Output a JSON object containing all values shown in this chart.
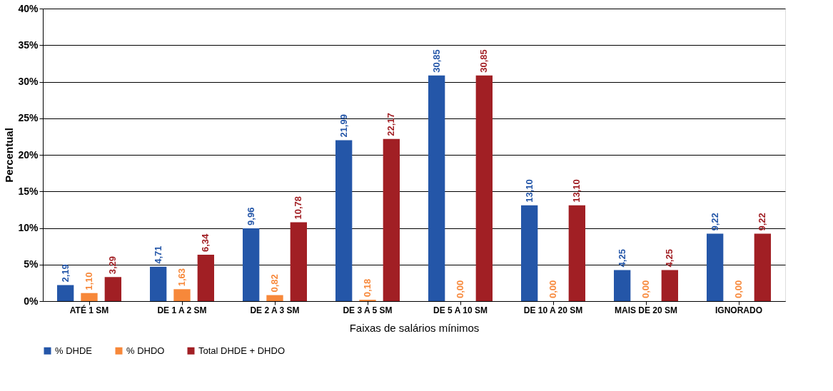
{
  "chart_data": {
    "type": "bar",
    "xlabel": "Faixas de salários mínimos",
    "ylabel": "Percentual",
    "categories": [
      "ATÉ 1 SM",
      "DE 1 A 2 SM",
      "DE 2 A 3 SM",
      "DE 3 A 5 SM",
      "DE 5 A 10 SM",
      "DE 10 A 20 SM",
      "MAIS DE 20 SM",
      "IGNORADO"
    ],
    "series": [
      {
        "name": "% DHDE",
        "color": "#2456a8",
        "values": [
          2.19,
          4.71,
          9.96,
          21.99,
          30.85,
          13.1,
          4.25,
          9.22
        ],
        "value_labels": [
          "2,19",
          "4,71",
          "9,96",
          "21,99",
          "30,85",
          "13,10",
          "4,25",
          "9,22"
        ]
      },
      {
        "name": "% DHDO",
        "color": "#f7883a",
        "values": [
          1.1,
          1.63,
          0.82,
          0.18,
          0.0,
          0.0,
          0.0,
          0.0
        ],
        "value_labels": [
          "1,10",
          "1,63",
          "0,82",
          "0,18",
          "0,00",
          "0,00",
          "0,00",
          "0,00"
        ]
      },
      {
        "name": "Total DHDE + DHDO",
        "color": "#a11f24",
        "values": [
          3.29,
          6.34,
          10.78,
          22.17,
          30.85,
          13.1,
          4.25,
          9.22
        ],
        "value_labels": [
          "3,29",
          "6,34",
          "10,78",
          "22,17",
          "30,85",
          "13,10",
          "4,25",
          "9,22"
        ]
      }
    ],
    "ylim": [
      0,
      40
    ],
    "yticks": [
      {
        "value": 0,
        "label": "0%"
      },
      {
        "value": 5,
        "label": "5%"
      },
      {
        "value": 10,
        "label": "10%"
      },
      {
        "value": 15,
        "label": "15%"
      },
      {
        "value": 20,
        "label": "20%"
      },
      {
        "value": 25,
        "label": "25%"
      },
      {
        "value": 30,
        "label": "30%"
      },
      {
        "value": 35,
        "label": "35%"
      },
      {
        "value": 40,
        "label": "40%"
      }
    ],
    "grid": "y",
    "legend": "bottom"
  }
}
